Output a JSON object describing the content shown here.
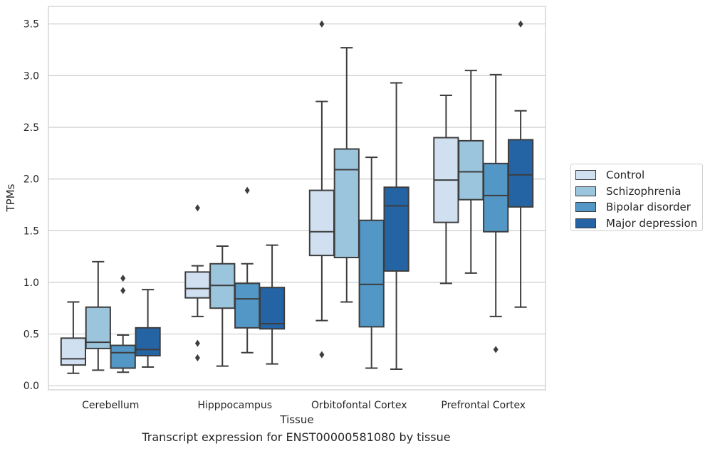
{
  "chart_data": {
    "type": "boxplot",
    "title": "Transcript expression for ENST00000581080 by tissue",
    "xlabel": "Tissue",
    "ylabel": "TPMs",
    "ylim": [
      -0.04,
      3.67
    ],
    "yticks": [
      0.0,
      0.5,
      1.0,
      1.5,
      2.0,
      2.5,
      3.0,
      3.5
    ],
    "ytick_labels": [
      "0.0",
      "0.5",
      "1.0",
      "1.5",
      "2.0",
      "2.5",
      "3.0",
      "3.5"
    ],
    "categories": [
      "Cerebellum",
      "Hipppocampus",
      "Orbitofontal Cortex",
      "Prefrontal Cortex"
    ],
    "grid": true,
    "legend_position": "right",
    "series": [
      {
        "name": "Control",
        "color": "#d0e0f1",
        "boxes": [
          {
            "whislo": 0.12,
            "q1": 0.2,
            "med": 0.26,
            "q3": 0.46,
            "whishi": 0.81,
            "fliers": []
          },
          {
            "whislo": 0.67,
            "q1": 0.85,
            "med": 0.94,
            "q3": 1.1,
            "whishi": 1.16,
            "fliers": [
              1.72,
              0.41,
              0.27
            ]
          },
          {
            "whislo": 0.63,
            "q1": 1.26,
            "med": 1.49,
            "q3": 1.89,
            "whishi": 2.75,
            "fliers": [
              3.5,
              0.3
            ]
          },
          {
            "whislo": 0.99,
            "q1": 1.58,
            "med": 1.99,
            "q3": 2.4,
            "whishi": 2.81,
            "fliers": []
          }
        ]
      },
      {
        "name": "Schizophrenia",
        "color": "#9bc4dd",
        "boxes": [
          {
            "whislo": 0.15,
            "q1": 0.36,
            "med": 0.42,
            "q3": 0.76,
            "whishi": 1.2,
            "fliers": []
          },
          {
            "whislo": 0.19,
            "q1": 0.75,
            "med": 0.97,
            "q3": 1.18,
            "whishi": 1.35,
            "fliers": []
          },
          {
            "whislo": 0.81,
            "q1": 1.24,
            "med": 2.09,
            "q3": 2.29,
            "whishi": 3.27,
            "fliers": []
          },
          {
            "whislo": 1.09,
            "q1": 1.8,
            "med": 2.07,
            "q3": 2.37,
            "whishi": 3.05,
            "fliers": []
          }
        ]
      },
      {
        "name": "Bipolar disorder",
        "color": "#5397c6",
        "boxes": [
          {
            "whislo": 0.13,
            "q1": 0.17,
            "med": 0.32,
            "q3": 0.39,
            "whishi": 0.49,
            "fliers": [
              1.04,
              0.92
            ]
          },
          {
            "whislo": 0.32,
            "q1": 0.56,
            "med": 0.84,
            "q3": 0.99,
            "whishi": 1.18,
            "fliers": [
              1.89
            ]
          },
          {
            "whislo": 0.17,
            "q1": 0.57,
            "med": 0.98,
            "q3": 1.6,
            "whishi": 2.21,
            "fliers": []
          },
          {
            "whislo": 0.67,
            "q1": 1.49,
            "med": 1.84,
            "q3": 2.15,
            "whishi": 3.01,
            "fliers": [
              0.35
            ]
          }
        ]
      },
      {
        "name": "Major depression",
        "color": "#2564a4",
        "boxes": [
          {
            "whislo": 0.18,
            "q1": 0.29,
            "med": 0.35,
            "q3": 0.56,
            "whishi": 0.93,
            "fliers": []
          },
          {
            "whislo": 0.21,
            "q1": 0.55,
            "med": 0.6,
            "q3": 0.95,
            "whishi": 1.36,
            "fliers": []
          },
          {
            "whislo": 0.16,
            "q1": 1.11,
            "med": 1.74,
            "q3": 1.92,
            "whishi": 2.93,
            "fliers": []
          },
          {
            "whislo": 0.76,
            "q1": 1.73,
            "med": 2.04,
            "q3": 2.38,
            "whishi": 2.66,
            "fliers": [
              3.5
            ]
          }
        ]
      }
    ]
  }
}
